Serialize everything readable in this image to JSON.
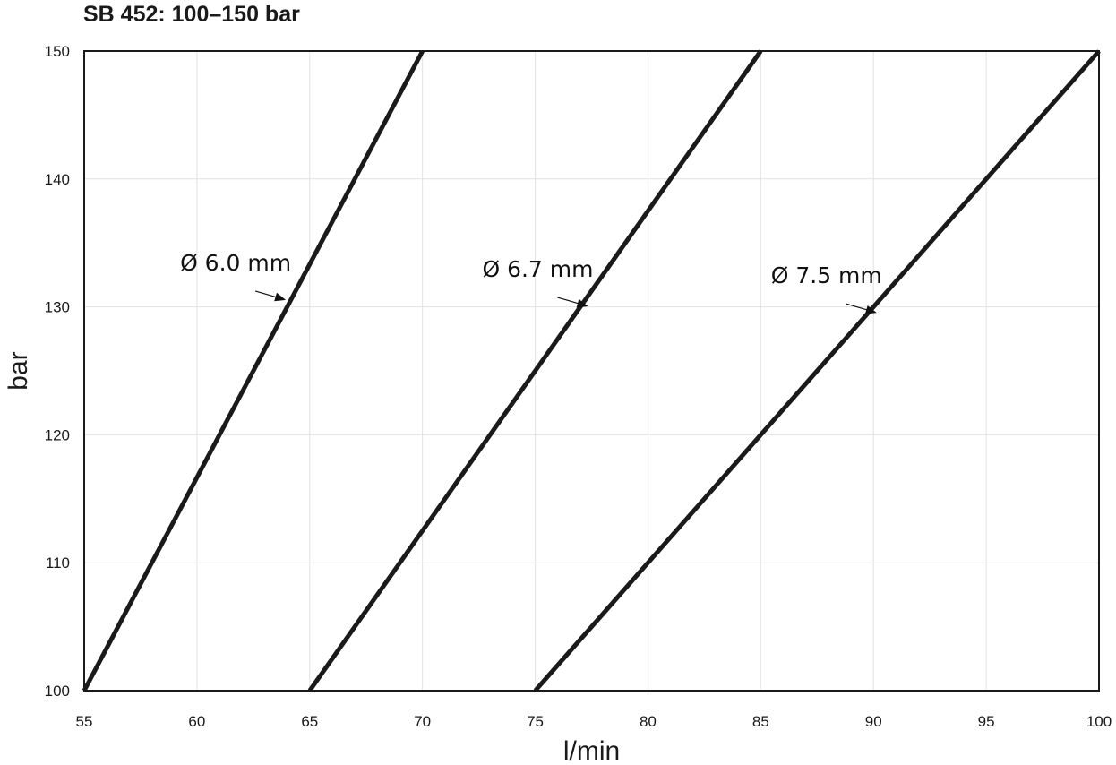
{
  "chart_data": {
    "type": "line",
    "title": "SB 452: 100–150 bar",
    "xlabel": "l/min",
    "ylabel": "bar",
    "xlim": [
      55,
      100
    ],
    "ylim": [
      100,
      150
    ],
    "x_ticks": [
      55,
      60,
      65,
      70,
      75,
      80,
      85,
      90,
      95,
      100
    ],
    "y_ticks": [
      100,
      110,
      120,
      130,
      140,
      150
    ],
    "grid": true,
    "legend": "none",
    "series": [
      {
        "name": "Ø 6.0 mm",
        "x": [
          55,
          70
        ],
        "y": [
          100,
          150
        ],
        "annotation_at": {
          "x": 64.1,
          "y": 132.5
        }
      },
      {
        "name": "Ø 6.7 mm",
        "x": [
          65,
          85
        ],
        "y": [
          100,
          150
        ],
        "annotation_at": {
          "x": 77.5,
          "y": 132
        }
      },
      {
        "name": "Ø 7.5 mm",
        "x": [
          75,
          100
        ],
        "y": [
          100,
          150
        ],
        "annotation_at": {
          "x": 90.3,
          "y": 131.5
        }
      }
    ]
  }
}
